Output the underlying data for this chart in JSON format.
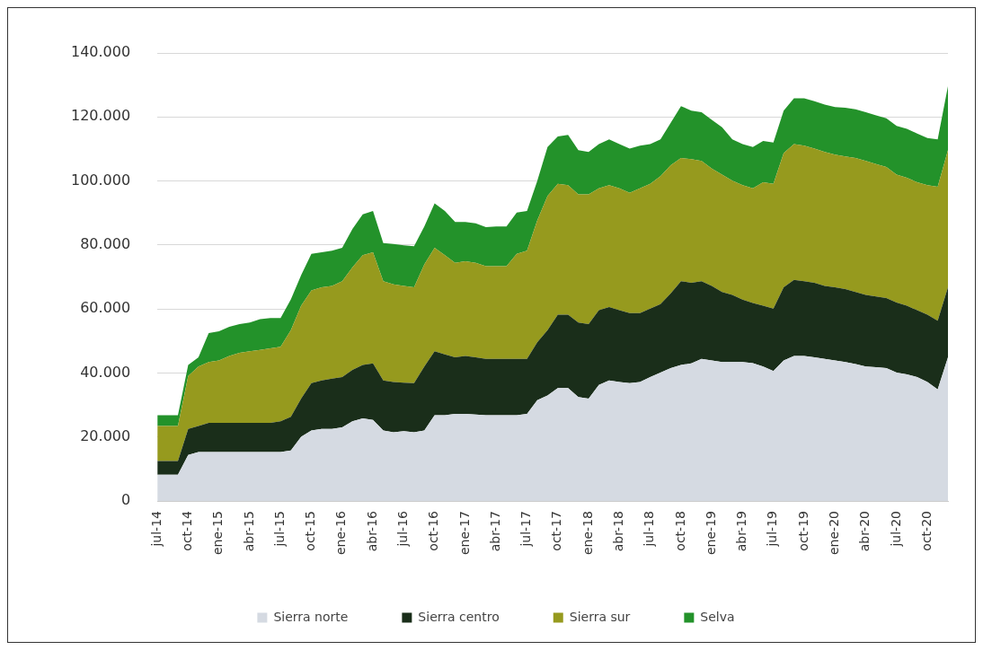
{
  "chart_data": {
    "type": "area",
    "stacked": true,
    "categories": [
      "jul-14",
      null,
      null,
      "oct-14",
      null,
      null,
      "ene-15",
      null,
      null,
      "abr-15",
      null,
      null,
      "jul-15",
      null,
      null,
      "oct-15",
      null,
      null,
      "ene-16",
      null,
      null,
      "abr-16",
      null,
      null,
      "jul-16",
      null,
      null,
      "oct-16",
      null,
      null,
      "ene-17",
      null,
      null,
      "abr-17",
      null,
      null,
      "jul-17",
      null,
      null,
      "oct-17",
      null,
      null,
      "ene-18",
      null,
      null,
      "abr-18",
      null,
      null,
      "jul-18",
      null,
      null,
      "oct-18",
      null,
      null,
      "ene-19",
      null,
      null,
      "abr-19",
      null,
      null,
      "jul-19",
      null,
      null,
      "oct-19",
      null,
      null,
      "ene-20",
      null,
      null,
      "abr-20",
      null,
      null,
      "jul-20",
      null,
      null,
      "oct-20",
      null,
      null
    ],
    "series": [
      {
        "name": "Sierra norte",
        "color": "#d5dae2",
        "values": [
          8200,
          8200,
          8200,
          14400,
          15300,
          15300,
          15300,
          15300,
          15300,
          15300,
          15300,
          15300,
          15300,
          15800,
          20100,
          22000,
          22500,
          22500,
          23000,
          24900,
          25800,
          25300,
          22000,
          21500,
          21800,
          21500,
          22000,
          26800,
          26800,
          27200,
          27200,
          27000,
          26800,
          26800,
          26800,
          26800,
          27200,
          31500,
          33000,
          35300,
          35300,
          32500,
          32000,
          36300,
          37700,
          37200,
          36800,
          37200,
          38700,
          40100,
          41500,
          42500,
          43000,
          44400,
          43900,
          43400,
          43400,
          43400,
          43100,
          42000,
          40600,
          43900,
          45300,
          45300,
          44900,
          44400,
          43900,
          43400,
          42800,
          42000,
          41800,
          41500,
          40100,
          39600,
          38700,
          37200,
          34900,
          44900
        ]
      },
      {
        "name": "Sierra centro",
        "color": "#1a2e1a",
        "values": [
          4300,
          4300,
          4300,
          8100,
          8100,
          9100,
          9100,
          9100,
          9100,
          9100,
          9100,
          9100,
          9600,
          10500,
          11900,
          14800,
          15200,
          15700,
          15700,
          16100,
          16700,
          17700,
          15700,
          15700,
          15200,
          15300,
          20000,
          20000,
          19000,
          17700,
          18100,
          17900,
          17600,
          17600,
          17600,
          17600,
          17200,
          18100,
          20400,
          22900,
          22900,
          23300,
          23300,
          23300,
          22900,
          22400,
          21900,
          21500,
          21400,
          21400,
          23400,
          26200,
          25200,
          24300,
          23300,
          21900,
          21000,
          19500,
          18800,
          19000,
          19500,
          22900,
          23800,
          23400,
          23300,
          22800,
          22900,
          22800,
          22500,
          22400,
          22100,
          21900,
          21900,
          21400,
          20900,
          21000,
          21400,
          21900
        ]
      },
      {
        "name": "Sierra sur",
        "color": "#969a1e",
        "values": [
          10900,
          10900,
          10900,
          16600,
          18600,
          19000,
          19500,
          20900,
          21900,
          22400,
          22800,
          23300,
          23300,
          27100,
          29000,
          29000,
          29100,
          29000,
          30000,
          32000,
          34300,
          34700,
          31000,
          30500,
          30200,
          30000,
          31900,
          32300,
          31000,
          29500,
          29600,
          29500,
          29000,
          29000,
          29000,
          32800,
          33800,
          38100,
          41900,
          40900,
          40500,
          40000,
          40500,
          38100,
          38100,
          38100,
          37600,
          39000,
          39000,
          40000,
          40000,
          38500,
          38600,
          37600,
          36700,
          36700,
          35700,
          35800,
          35800,
          38600,
          39000,
          41900,
          42400,
          42300,
          41900,
          41900,
          41400,
          41500,
          41900,
          41900,
          41400,
          41000,
          40000,
          40000,
          40000,
          40500,
          41900,
          42800
        ]
      },
      {
        "name": "Selva",
        "color": "#23922a",
        "values": [
          3400,
          3400,
          3400,
          3400,
          2900,
          9100,
          9100,
          9100,
          9000,
          9000,
          9600,
          9500,
          9000,
          9600,
          9600,
          11400,
          10900,
          11000,
          10400,
          12000,
          12800,
          12900,
          11900,
          12600,
          12700,
          12800,
          11900,
          13900,
          13800,
          12800,
          12300,
          12400,
          12200,
          12400,
          12400,
          12900,
          12400,
          12300,
          15300,
          14800,
          15700,
          13800,
          13300,
          13800,
          14300,
          13800,
          13800,
          13300,
          12400,
          11500,
          13300,
          16200,
          15200,
          15200,
          15200,
          14800,
          12900,
          12800,
          12900,
          12900,
          12900,
          13300,
          14300,
          14800,
          14800,
          14800,
          14900,
          15200,
          15200,
          15200,
          15200,
          15200,
          15200,
          15300,
          15200,
          14700,
          14800,
          20000
        ]
      }
    ],
    "ylim": [
      0,
      140000
    ],
    "yticks": [
      {
        "value": 0,
        "label": "0"
      },
      {
        "value": 20000,
        "label": "20.000"
      },
      {
        "value": 40000,
        "label": "40.000"
      },
      {
        "value": 60000,
        "label": "60.000"
      },
      {
        "value": 80000,
        "label": "80.000"
      },
      {
        "value": 100000,
        "label": "100.000"
      },
      {
        "value": 120000,
        "label": "120.000"
      },
      {
        "value": 140000,
        "label": "140.000"
      }
    ],
    "grid": "y",
    "legend": "bottom"
  }
}
